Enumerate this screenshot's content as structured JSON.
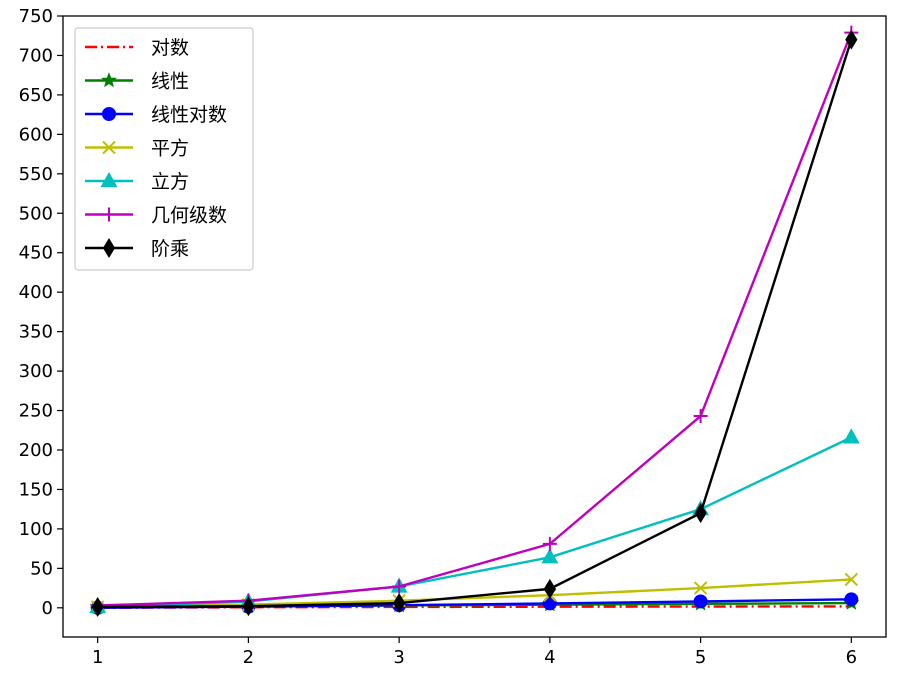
{
  "chart_data": {
    "type": "line",
    "title": "",
    "xlabel": "",
    "ylabel": "",
    "x": [
      1,
      2,
      3,
      4,
      5,
      6
    ],
    "xlim": [
      0.77,
      6.23
    ],
    "ylim": [
      -37,
      750
    ],
    "xticks": [
      1,
      2,
      3,
      4,
      5,
      6
    ],
    "yticks": [
      0,
      50,
      100,
      150,
      200,
      250,
      300,
      350,
      400,
      450,
      500,
      550,
      600,
      650,
      700,
      750
    ],
    "grid": false,
    "legend_position": "top-left",
    "series": [
      {
        "name": "对数",
        "values": [
          0,
          0.69,
          1.1,
          1.39,
          1.61,
          1.79
        ],
        "color": "#ff0000",
        "linestyle": "dashdot",
        "marker": "none"
      },
      {
        "name": "线性",
        "values": [
          1,
          2,
          3,
          4,
          5,
          6
        ],
        "color": "#008000",
        "linestyle": "solid",
        "marker": "star"
      },
      {
        "name": "线性对数",
        "values": [
          0,
          1.39,
          3.3,
          5.55,
          8.05,
          10.75
        ],
        "color": "#0000ff",
        "linestyle": "solid",
        "marker": "circle"
      },
      {
        "name": "平方",
        "values": [
          1,
          4,
          9,
          16,
          25,
          36
        ],
        "color": "#bfbf00",
        "linestyle": "solid",
        "marker": "x"
      },
      {
        "name": "立方",
        "values": [
          1,
          8,
          27,
          64,
          125,
          216
        ],
        "color": "#00bfbf",
        "linestyle": "solid",
        "marker": "triangle"
      },
      {
        "name": "几何级数",
        "values": [
          3,
          9,
          27,
          81,
          243,
          729
        ],
        "color": "#bf00bf",
        "linestyle": "solid",
        "marker": "plus"
      },
      {
        "name": "阶乘",
        "values": [
          1,
          2,
          6,
          24,
          120,
          720
        ],
        "color": "#000000",
        "linestyle": "solid",
        "marker": "diamond"
      }
    ]
  }
}
